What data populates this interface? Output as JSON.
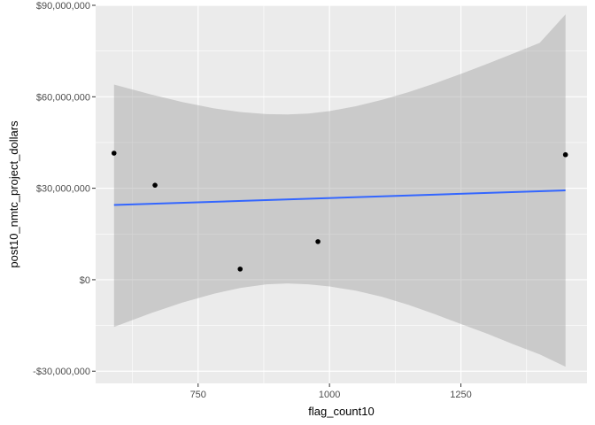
{
  "chart_data": {
    "type": "scatter",
    "xlabel": "flag_count10",
    "ylabel": "post10_nmtc_project_dollars",
    "xlim": [
      555,
      1490
    ],
    "ylim": [
      -34000000,
      90000000
    ],
    "x_ticks": [
      {
        "value": 750,
        "label": "750"
      },
      {
        "value": 1000,
        "label": "1000"
      },
      {
        "value": 1250,
        "label": "1250"
      }
    ],
    "y_ticks": [
      {
        "value": -30000000,
        "label": "-$30,000,000"
      },
      {
        "value": 0,
        "label": "$0"
      },
      {
        "value": 30000000,
        "label": "$30,000,000"
      },
      {
        "value": 60000000,
        "label": "$60,000,000"
      },
      {
        "value": 90000000,
        "label": "$90,000,000"
      }
    ],
    "points": [
      {
        "x": 590,
        "y": 41500000
      },
      {
        "x": 668,
        "y": 31000000
      },
      {
        "x": 830,
        "y": 3500000
      },
      {
        "x": 978,
        "y": 12500000
      },
      {
        "x": 1449,
        "y": 41000000
      }
    ],
    "trend_line": {
      "x": [
        590,
        1449
      ],
      "y": [
        24500000,
        29300000
      ],
      "color": "#3366ff"
    },
    "confidence_band": {
      "x": [
        590,
        660,
        720,
        780,
        830,
        880,
        920,
        960,
        1000,
        1050,
        1100,
        1150,
        1200,
        1250,
        1300,
        1350,
        1400,
        1449
      ],
      "upper": [
        64000000,
        60800000,
        58300000,
        56200000,
        55000000,
        54300000,
        54200000,
        54500000,
        55300000,
        56900000,
        59000000,
        61500000,
        64400000,
        67500000,
        70800000,
        74200000,
        77700000,
        87000000
      ],
      "lower": [
        -15500000,
        -11000000,
        -7500000,
        -4600000,
        -2700000,
        -1500000,
        -1200000,
        -1500000,
        -2200000,
        -3600000,
        -5600000,
        -8200000,
        -11300000,
        -14500000,
        -17700000,
        -21200000,
        -24500000,
        -28500000
      ],
      "color": "#999999"
    },
    "grid": true,
    "colors": {
      "panel_bg": "#ebebeb",
      "grid": "#ffffff",
      "points": "#000000",
      "line": "#3366ff"
    }
  }
}
